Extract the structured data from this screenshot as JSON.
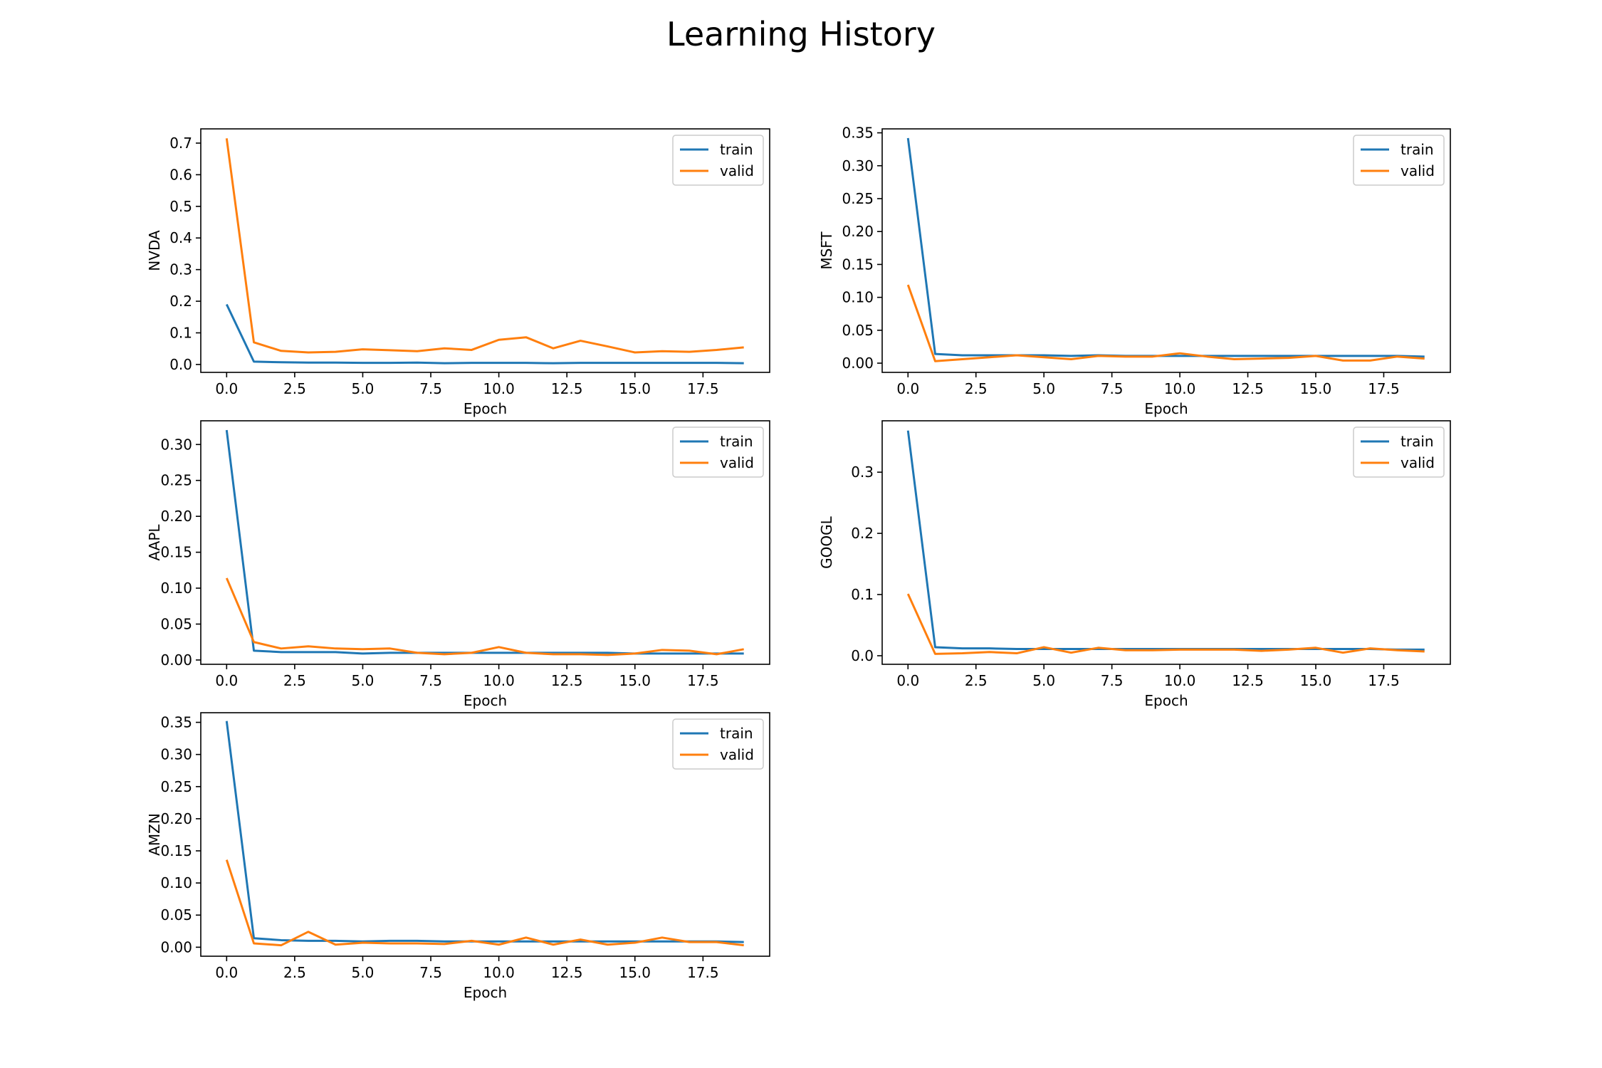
{
  "title": "Learning History",
  "colors": {
    "train": "#1f77b4",
    "valid": "#ff7f0e"
  },
  "chart_data": [
    {
      "type": "line",
      "ylabel": "NVDA",
      "xlabel": "Epoch",
      "x": [
        0,
        1,
        2,
        3,
        4,
        5,
        6,
        7,
        8,
        9,
        10,
        11,
        12,
        13,
        14,
        15,
        16,
        17,
        18,
        19
      ],
      "xlim": [
        -0.95,
        19.95
      ],
      "ylim": [
        -0.025,
        0.745
      ],
      "xticks": [
        0,
        2.5,
        5,
        7.5,
        10,
        12.5,
        15,
        17.5
      ],
      "xtick_labels": [
        "0.0",
        "2.5",
        "5.0",
        "7.5",
        "10.0",
        "12.5",
        "15.0",
        "17.5"
      ],
      "yticks": [
        0,
        0.1,
        0.2,
        0.3,
        0.4,
        0.5,
        0.6,
        0.7
      ],
      "ytick_labels": [
        "0.0",
        "0.1",
        "0.2",
        "0.3",
        "0.4",
        "0.5",
        "0.6",
        "0.7"
      ],
      "legend": "top-right",
      "series": [
        {
          "name": "train",
          "values": [
            0.19,
            0.009,
            0.007,
            0.006,
            0.006,
            0.005,
            0.005,
            0.006,
            0.004,
            0.005,
            0.005,
            0.005,
            0.004,
            0.005,
            0.005,
            0.005,
            0.005,
            0.005,
            0.005,
            0.004
          ]
        },
        {
          "name": "valid",
          "values": [
            0.715,
            0.07,
            0.043,
            0.038,
            0.04,
            0.048,
            0.045,
            0.042,
            0.051,
            0.046,
            0.078,
            0.086,
            0.051,
            0.075,
            0.057,
            0.038,
            0.042,
            0.04,
            0.046,
            0.054
          ]
        }
      ]
    },
    {
      "type": "line",
      "ylabel": "MSFT",
      "xlabel": "Epoch",
      "x": [
        0,
        1,
        2,
        3,
        4,
        5,
        6,
        7,
        8,
        9,
        10,
        11,
        12,
        13,
        14,
        15,
        16,
        17,
        18,
        19
      ],
      "xlim": [
        -0.95,
        19.95
      ],
      "ylim": [
        -0.014,
        0.356
      ],
      "xticks": [
        0,
        2.5,
        5,
        7.5,
        10,
        12.5,
        15,
        17.5
      ],
      "xtick_labels": [
        "0.0",
        "2.5",
        "5.0",
        "7.5",
        "10.0",
        "12.5",
        "15.0",
        "17.5"
      ],
      "yticks": [
        0,
        0.05,
        0.1,
        0.15,
        0.2,
        0.25,
        0.3,
        0.35
      ],
      "ytick_labels": [
        "0.00",
        "0.05",
        "0.10",
        "0.15",
        "0.20",
        "0.25",
        "0.30",
        "0.35"
      ],
      "legend": "top-right",
      "series": [
        {
          "name": "train",
          "values": [
            0.342,
            0.014,
            0.012,
            0.012,
            0.012,
            0.012,
            0.011,
            0.012,
            0.011,
            0.011,
            0.011,
            0.011,
            0.011,
            0.011,
            0.011,
            0.011,
            0.011,
            0.011,
            0.011,
            0.01
          ]
        },
        {
          "name": "valid",
          "values": [
            0.119,
            0.003,
            0.006,
            0.009,
            0.012,
            0.009,
            0.006,
            0.011,
            0.01,
            0.01,
            0.015,
            0.01,
            0.006,
            0.007,
            0.008,
            0.011,
            0.004,
            0.004,
            0.01,
            0.007
          ]
        }
      ]
    },
    {
      "type": "line",
      "ylabel": "AAPL",
      "xlabel": "Epoch",
      "x": [
        0,
        1,
        2,
        3,
        4,
        5,
        6,
        7,
        8,
        9,
        10,
        11,
        12,
        13,
        14,
        15,
        16,
        17,
        18,
        19
      ],
      "xlim": [
        -0.95,
        19.95
      ],
      "ylim": [
        -0.006,
        0.333
      ],
      "xticks": [
        0,
        2.5,
        5,
        7.5,
        10,
        12.5,
        15,
        17.5
      ],
      "xtick_labels": [
        "0.0",
        "2.5",
        "5.0",
        "7.5",
        "10.0",
        "12.5",
        "15.0",
        "17.5"
      ],
      "yticks": [
        0,
        0.05,
        0.1,
        0.15,
        0.2,
        0.25,
        0.3
      ],
      "ytick_labels": [
        "0.00",
        "0.05",
        "0.10",
        "0.15",
        "0.20",
        "0.25",
        "0.30"
      ],
      "legend": "top-right",
      "series": [
        {
          "name": "train",
          "values": [
            0.32,
            0.013,
            0.011,
            0.011,
            0.011,
            0.009,
            0.01,
            0.01,
            0.01,
            0.01,
            0.01,
            0.01,
            0.01,
            0.01,
            0.01,
            0.009,
            0.009,
            0.009,
            0.009,
            0.009
          ]
        },
        {
          "name": "valid",
          "values": [
            0.114,
            0.025,
            0.016,
            0.019,
            0.016,
            0.015,
            0.016,
            0.01,
            0.008,
            0.01,
            0.018,
            0.01,
            0.008,
            0.008,
            0.007,
            0.009,
            0.014,
            0.013,
            0.008,
            0.015
          ]
        }
      ]
    },
    {
      "type": "line",
      "ylabel": "GOOGL",
      "xlabel": "Epoch",
      "x": [
        0,
        1,
        2,
        3,
        4,
        5,
        6,
        7,
        8,
        9,
        10,
        11,
        12,
        13,
        14,
        15,
        16,
        17,
        18,
        19
      ],
      "xlim": [
        -0.95,
        19.95
      ],
      "ylim": [
        -0.014,
        0.384
      ],
      "xticks": [
        0,
        2.5,
        5,
        7.5,
        10,
        12.5,
        15,
        17.5
      ],
      "xtick_labels": [
        "0.0",
        "2.5",
        "5.0",
        "7.5",
        "10.0",
        "12.5",
        "15.0",
        "17.5"
      ],
      "yticks": [
        0,
        0.1,
        0.2,
        0.3
      ],
      "ytick_labels": [
        "0.0",
        "0.1",
        "0.2",
        "0.3"
      ],
      "legend": "top-right",
      "series": [
        {
          "name": "train",
          "values": [
            0.368,
            0.014,
            0.012,
            0.012,
            0.011,
            0.011,
            0.011,
            0.011,
            0.011,
            0.011,
            0.011,
            0.011,
            0.011,
            0.011,
            0.011,
            0.011,
            0.011,
            0.011,
            0.01,
            0.01
          ]
        },
        {
          "name": "valid",
          "values": [
            0.101,
            0.003,
            0.004,
            0.006,
            0.004,
            0.014,
            0.005,
            0.013,
            0.009,
            0.009,
            0.01,
            0.01,
            0.01,
            0.008,
            0.01,
            0.013,
            0.005,
            0.012,
            0.009,
            0.007
          ]
        }
      ]
    },
    {
      "type": "line",
      "ylabel": "AMZN",
      "xlabel": "Epoch",
      "x": [
        0,
        1,
        2,
        3,
        4,
        5,
        6,
        7,
        8,
        9,
        10,
        11,
        12,
        13,
        14,
        15,
        16,
        17,
        18,
        19
      ],
      "xlim": [
        -0.95,
        19.95
      ],
      "ylim": [
        -0.014,
        0.365
      ],
      "xticks": [
        0,
        2.5,
        5,
        7.5,
        10,
        12.5,
        15,
        17.5
      ],
      "xtick_labels": [
        "0.0",
        "2.5",
        "5.0",
        "7.5",
        "10.0",
        "12.5",
        "15.0",
        "17.5"
      ],
      "yticks": [
        0,
        0.05,
        0.1,
        0.15,
        0.2,
        0.25,
        0.3,
        0.35
      ],
      "ytick_labels": [
        "0.00",
        "0.05",
        "0.10",
        "0.15",
        "0.20",
        "0.25",
        "0.30",
        "0.35"
      ],
      "legend": "top-right",
      "series": [
        {
          "name": "train",
          "values": [
            0.352,
            0.014,
            0.011,
            0.01,
            0.01,
            0.009,
            0.01,
            0.01,
            0.009,
            0.009,
            0.009,
            0.009,
            0.009,
            0.009,
            0.009,
            0.009,
            0.009,
            0.009,
            0.009,
            0.008
          ]
        },
        {
          "name": "valid",
          "values": [
            0.136,
            0.006,
            0.003,
            0.024,
            0.004,
            0.007,
            0.006,
            0.006,
            0.005,
            0.01,
            0.004,
            0.015,
            0.004,
            0.012,
            0.004,
            0.007,
            0.015,
            0.008,
            0.008,
            0.003
          ]
        }
      ]
    }
  ]
}
